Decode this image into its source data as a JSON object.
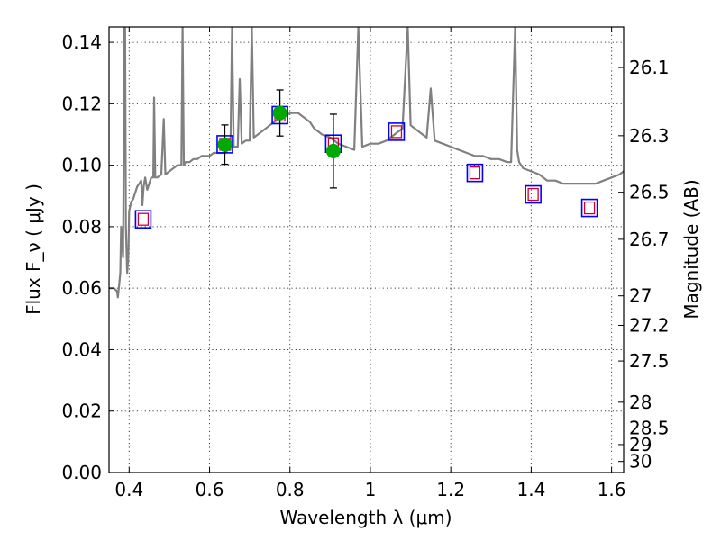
{
  "chart_data": {
    "type": "scatter",
    "title": "",
    "xlabel": "Wavelength  λ (μm)",
    "ylabel": "Flux  F_ν  ( μJy )",
    "ylabel_right": "Magnitude (AB)",
    "xlim": [
      0.35,
      1.63
    ],
    "ylim": [
      0.0,
      0.145
    ],
    "grid": true,
    "legend": "none",
    "x_ticks": [
      0.4,
      0.6,
      0.8,
      1.0,
      1.2,
      1.4,
      1.6
    ],
    "x_tick_labels": [
      "0.4",
      "0.6",
      "0.8",
      "1",
      "1.2",
      "1.4",
      "1.6"
    ],
    "y_ticks": [
      0.0,
      0.02,
      0.04,
      0.06,
      0.08,
      0.1,
      0.12,
      0.14
    ],
    "y_tick_labels": [
      "0.00",
      "0.02",
      "0.04",
      "0.06",
      "0.08",
      "0.10",
      "0.12",
      "0.14"
    ],
    "right_ticks": [
      {
        "label": "26.1",
        "flux": 0.1318
      },
      {
        "label": "26.3",
        "flux": 0.1096
      },
      {
        "label": "26.5",
        "flux": 0.0912
      },
      {
        "label": "26.7",
        "flux": 0.0759
      },
      {
        "label": "27",
        "flux": 0.0575
      },
      {
        "label": "27.2",
        "flux": 0.0479
      },
      {
        "label": "27.5",
        "flux": 0.0363
      },
      {
        "label": "28",
        "flux": 0.0229
      },
      {
        "label": "28.5",
        "flux": 0.0145
      },
      {
        "label": "29",
        "flux": 0.0091
      },
      {
        "label": "30",
        "flux": 0.0036
      }
    ],
    "colors": {
      "model": "#808080",
      "observed": "#00aa00",
      "filter_box": "#0000ff",
      "model_box": "#cc0033",
      "errorbar": "#000000"
    },
    "series": [
      {
        "kind": "model_spectrum",
        "x": [
          0.35,
          0.362,
          0.37,
          0.372,
          0.375,
          0.378,
          0.38,
          0.385,
          0.388,
          0.39,
          0.392,
          0.395,
          0.398,
          0.4,
          0.405,
          0.41,
          0.415,
          0.42,
          0.425,
          0.43,
          0.433,
          0.436,
          0.44,
          0.445,
          0.45,
          0.455,
          0.46,
          0.462,
          0.465,
          0.47,
          0.48,
          0.486,
          0.49,
          0.5,
          0.51,
          0.52,
          0.53,
          0.533,
          0.536,
          0.54,
          0.55,
          0.56,
          0.57,
          0.58,
          0.59,
          0.6,
          0.61,
          0.62,
          0.63,
          0.64,
          0.645,
          0.652,
          0.656,
          0.66,
          0.67,
          0.675,
          0.68,
          0.69,
          0.7,
          0.705,
          0.71,
          0.72,
          0.73,
          0.74,
          0.75,
          0.76,
          0.77,
          0.78,
          0.79,
          0.8,
          0.82,
          0.84,
          0.85,
          0.86,
          0.87,
          0.88,
          0.9,
          0.91,
          0.92,
          0.94,
          0.96,
          0.97,
          0.98,
          1.0,
          1.02,
          1.04,
          1.06,
          1.08,
          1.093,
          1.1,
          1.12,
          1.14,
          1.15,
          1.16,
          1.18,
          1.2,
          1.22,
          1.24,
          1.26,
          1.28,
          1.3,
          1.32,
          1.34,
          1.35,
          1.36,
          1.365,
          1.37,
          1.38,
          1.4,
          1.42,
          1.44,
          1.46,
          1.48,
          1.5,
          1.52,
          1.54,
          1.56,
          1.58,
          1.6,
          1.62,
          1.63
        ],
        "y": [
          0.06,
          0.06,
          0.059,
          0.057,
          0.061,
          0.065,
          0.08,
          0.07,
          0.145,
          0.145,
          0.08,
          0.065,
          0.07,
          0.085,
          0.088,
          0.089,
          0.091,
          0.093,
          0.094,
          0.095,
          0.087,
          0.093,
          0.096,
          0.092,
          0.094,
          0.096,
          0.096,
          0.122,
          0.096,
          0.096,
          0.097,
          0.115,
          0.097,
          0.098,
          0.099,
          0.1,
          0.1,
          0.145,
          0.1,
          0.101,
          0.101,
          0.102,
          0.102,
          0.103,
          0.103,
          0.103,
          0.104,
          0.104,
          0.104,
          0.104,
          0.105,
          0.105,
          0.145,
          0.106,
          0.106,
          0.128,
          0.107,
          0.108,
          0.108,
          0.145,
          0.109,
          0.11,
          0.111,
          0.112,
          0.113,
          0.114,
          0.115,
          0.116,
          0.116,
          0.117,
          0.117,
          0.115,
          0.114,
          0.112,
          0.111,
          0.11,
          0.109,
          0.108,
          0.107,
          0.106,
          0.105,
          0.145,
          0.106,
          0.107,
          0.107,
          0.108,
          0.11,
          0.112,
          0.145,
          0.113,
          0.111,
          0.109,
          0.125,
          0.108,
          0.107,
          0.106,
          0.105,
          0.104,
          0.103,
          0.103,
          0.102,
          0.102,
          0.101,
          0.101,
          0.145,
          0.105,
          0.101,
          0.099,
          0.098,
          0.097,
          0.095,
          0.095,
          0.094,
          0.094,
          0.094,
          0.094,
          0.094,
          0.095,
          0.096,
          0.097,
          0.098
        ]
      },
      {
        "kind": "filter_box",
        "x": [
          0.435,
          0.638,
          0.775,
          0.908,
          1.065,
          1.26,
          1.405,
          1.545
        ],
        "y": [
          0.0824,
          0.1068,
          0.1163,
          0.107,
          0.1109,
          0.0975,
          0.0905,
          0.0861
        ]
      },
      {
        "kind": "model_box",
        "x": [
          0.435,
          0.638,
          0.775,
          0.908,
          1.065,
          1.26,
          1.405,
          1.545
        ],
        "y": [
          0.0824,
          0.1068,
          0.1163,
          0.107,
          0.1109,
          0.0975,
          0.0905,
          0.0861
        ]
      },
      {
        "kind": "observed",
        "x": [
          0.638,
          0.775,
          0.908
        ],
        "y": [
          0.1067,
          0.117,
          0.1046
        ],
        "yerr": [
          0.0064,
          0.0075,
          0.012
        ]
      }
    ]
  }
}
